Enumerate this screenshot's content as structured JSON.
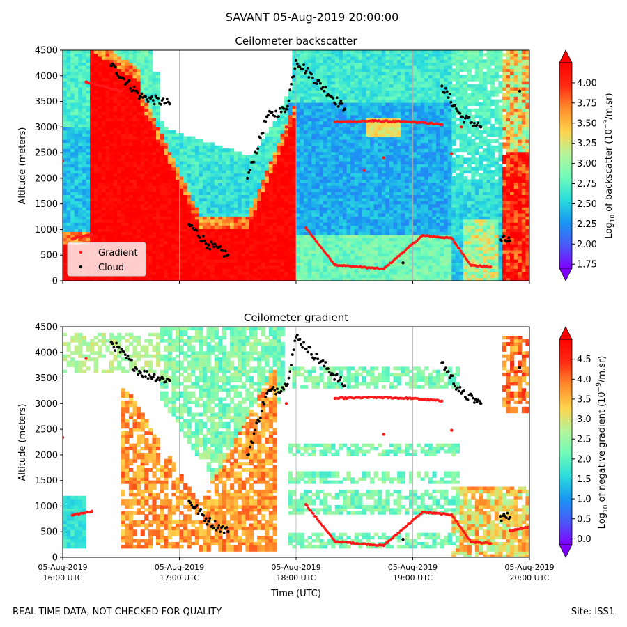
{
  "figure": {
    "title": "SAVANT 05-Aug-2019 20:00:00",
    "footer_left": "REAL TIME DATA, NOT CHECKED FOR QUALITY",
    "footer_right": "Site: ISS1",
    "xlabel": "Time (UTC)"
  },
  "colors": {
    "gradient_marker": "#ff1a1a",
    "cloud_marker": "#000000",
    "colormap": [
      "#8000ff",
      "#4a58f8",
      "#1996f3",
      "#2adddd",
      "#6ffbb8",
      "#b4f498",
      "#ffd24b",
      "#ff8c2a",
      "#ff2a13",
      "#ff0000"
    ]
  },
  "chart_data": [
    {
      "type": "heatmap",
      "title": "Ceilometer backscatter",
      "ylabel": "Altitude (meters)",
      "ylim": [
        0,
        4500
      ],
      "yticks": [
        "0",
        "500",
        "1000",
        "1500",
        "2000",
        "2500",
        "3000",
        "3500",
        "4000",
        "4500"
      ],
      "xlim": [
        "16:00",
        "20:00"
      ],
      "xticks": [
        {
          "date": "05-Aug-2019",
          "time": "16:00 UTC"
        },
        {
          "date": "05-Aug-2019",
          "time": "17:00 UTC"
        },
        {
          "date": "05-Aug-2019",
          "time": "18:00 UTC"
        },
        {
          "date": "05-Aug-2019",
          "time": "19:00 UTC"
        },
        {
          "date": "05-Aug-2019",
          "time": "20:00 UTC"
        }
      ],
      "legend": {
        "placement": "lower-left",
        "entries": [
          "Gradient",
          "Cloud"
        ]
      },
      "colorbar": {
        "label_prefix": "Log",
        "label_sub": "10",
        "label_mid": " of backscatter (10",
        "label_sup": "−9",
        "label_suffix": "/m.sr)",
        "range": [
          1.7,
          4.25
        ],
        "ticks": [
          "1.75",
          "2.00",
          "2.25",
          "2.50",
          "2.75",
          "3.00",
          "3.25",
          "3.50",
          "3.75",
          "4.00"
        ],
        "tick_values": [
          1.75,
          2.0,
          2.25,
          2.5,
          2.75,
          3.0,
          3.25,
          3.5,
          3.75,
          4.0
        ]
      },
      "series": [
        {
          "name": "Gradient",
          "marker": "dot",
          "color": "#ff1a1a",
          "points": [
            [
              "16:05",
              820
            ],
            [
              "16:15",
              900
            ],
            [
              "16:00",
              2340
            ],
            [
              "16:12",
              3880
            ],
            [
              "16:30",
              3700
            ],
            [
              "17:55",
              3000
            ],
            [
              "18:05",
              1030
            ],
            [
              "18:20",
              310
            ],
            [
              "18:45",
              230
            ],
            [
              "19:05",
              880
            ],
            [
              "19:20",
              830
            ],
            [
              "19:30",
              300
            ],
            [
              "19:40",
              270
            ],
            [
              "18:20",
              3100
            ],
            [
              "18:40",
              3120
            ],
            [
              "19:00",
              3100
            ],
            [
              "19:15",
              3050
            ],
            [
              "18:45",
              2400
            ],
            [
              "19:20",
              2480
            ],
            [
              "18:35",
              2150
            ],
            [
              "19:50",
              520
            ],
            [
              "19:25",
              3000
            ],
            [
              "20:00",
              590
            ]
          ]
        },
        {
          "name": "Cloud",
          "marker": "dot",
          "color": "#000000",
          "points": [
            [
              "16:25",
              4200
            ],
            [
              "16:40",
              3600
            ],
            [
              "16:55",
              3450
            ],
            [
              "17:05",
              1100
            ],
            [
              "17:15",
              700
            ],
            [
              "17:25",
              500
            ],
            [
              "17:35",
              2000
            ],
            [
              "17:45",
              3200
            ],
            [
              "17:55",
              3350
            ],
            [
              "18:00",
              4300
            ],
            [
              "18:25",
              3350
            ],
            [
              "18:55",
              350
            ],
            [
              "19:15",
              3800
            ],
            [
              "19:25",
              3200
            ],
            [
              "19:35",
              3000
            ],
            [
              "19:45",
              800
            ],
            [
              "19:50",
              780
            ],
            [
              "19:55",
              3700
            ]
          ]
        }
      ]
    },
    {
      "type": "heatmap",
      "title": "Ceilometer gradient",
      "ylabel": "Altitude (meters)",
      "ylim": [
        0,
        4500
      ],
      "yticks": [
        "0",
        "500",
        "1000",
        "1500",
        "2000",
        "2500",
        "3000",
        "3500",
        "4000",
        "4500"
      ],
      "xlim": [
        "16:00",
        "20:00"
      ],
      "xticks": [
        {
          "date": "05-Aug-2019",
          "time": "16:00 UTC"
        },
        {
          "date": "05-Aug-2019",
          "time": "17:00 UTC"
        },
        {
          "date": "05-Aug-2019",
          "time": "18:00 UTC"
        },
        {
          "date": "05-Aug-2019",
          "time": "19:00 UTC"
        },
        {
          "date": "05-Aug-2019",
          "time": "20:00 UTC"
        }
      ],
      "colorbar": {
        "label_prefix": "Log",
        "label_sub": "10",
        "label_mid": " of negative gradient (10",
        "label_sup": "−9",
        "label_suffix": "/m.sr)",
        "range": [
          -0.15,
          5.0
        ],
        "ticks": [
          "0.0",
          "0.5",
          "1.0",
          "1.5",
          "2.0",
          "2.5",
          "3.0",
          "3.5",
          "4.0",
          "4.5"
        ],
        "tick_values": [
          0.0,
          0.5,
          1.0,
          1.5,
          2.0,
          2.5,
          3.0,
          3.5,
          4.0,
          4.5
        ]
      },
      "series": [
        {
          "name": "Gradient",
          "marker": "dot",
          "color": "#ff1a1a",
          "points": [
            [
              "16:05",
              820
            ],
            [
              "16:15",
              900
            ],
            [
              "16:00",
              2340
            ],
            [
              "16:12",
              3880
            ],
            [
              "17:55",
              3000
            ],
            [
              "18:05",
              1030
            ],
            [
              "18:20",
              310
            ],
            [
              "18:45",
              230
            ],
            [
              "19:05",
              880
            ],
            [
              "19:20",
              830
            ],
            [
              "19:30",
              300
            ],
            [
              "19:40",
              270
            ],
            [
              "18:20",
              3100
            ],
            [
              "18:40",
              3120
            ],
            [
              "19:00",
              3100
            ],
            [
              "19:15",
              3050
            ],
            [
              "18:45",
              2400
            ],
            [
              "19:20",
              2480
            ],
            [
              "19:50",
              520
            ],
            [
              "20:00",
              590
            ]
          ]
        },
        {
          "name": "Cloud",
          "marker": "dot",
          "color": "#000000",
          "points": [
            [
              "16:25",
              4200
            ],
            [
              "16:40",
              3600
            ],
            [
              "16:55",
              3450
            ],
            [
              "17:05",
              1100
            ],
            [
              "17:15",
              700
            ],
            [
              "17:25",
              500
            ],
            [
              "17:35",
              2000
            ],
            [
              "17:45",
              3200
            ],
            [
              "17:55",
              3350
            ],
            [
              "18:00",
              4300
            ],
            [
              "18:25",
              3350
            ],
            [
              "18:55",
              350
            ],
            [
              "19:15",
              3800
            ],
            [
              "19:25",
              3200
            ],
            [
              "19:35",
              3000
            ],
            [
              "19:45",
              800
            ],
            [
              "19:50",
              780
            ],
            [
              "19:55",
              3700
            ]
          ]
        }
      ]
    }
  ]
}
